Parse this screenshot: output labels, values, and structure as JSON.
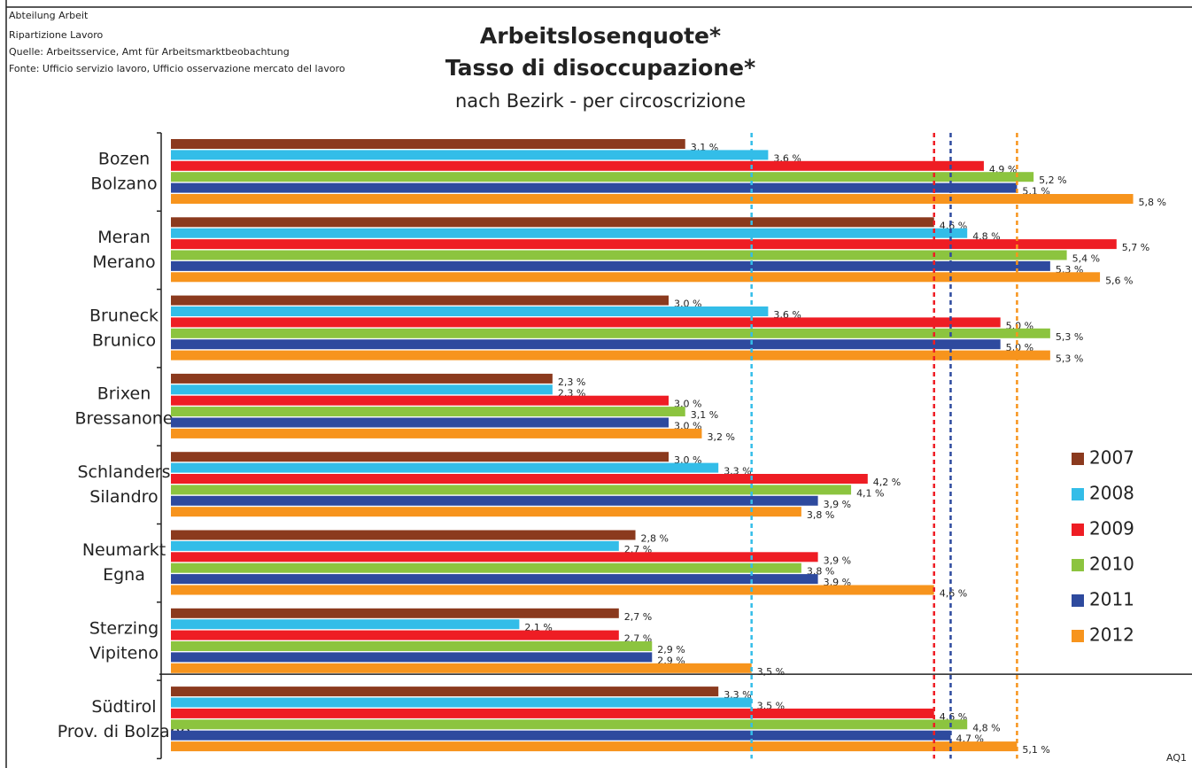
{
  "header": [
    "Abteilung Arbeit",
    "Ripartizione Lavoro",
    "Quelle: Arbeitsservice, Amt für Arbeitsmarktbeobachtung",
    "Fonte: Ufficio servizio lavoro, Ufficio osservazione mercato del lavoro"
  ],
  "footer": "AQ1",
  "chart_data": {
    "type": "hbar",
    "title": [
      "Arbeitslosenquote*",
      "Tasso di disoccupazione*"
    ],
    "subtitle": "nach Bezirk - per circoscrizione",
    "categories": [
      [
        "Bozen",
        "Bolzano"
      ],
      [
        "Meran",
        "Merano"
      ],
      [
        "Bruneck",
        "Brunico"
      ],
      [
        "Brixen",
        "Bressanone"
      ],
      [
        "Schlanders",
        "Silandro"
      ],
      [
        "Neumarkt",
        "Egna"
      ],
      [
        "Sterzing",
        "Vipiteno"
      ],
      [
        "Südtirol",
        "Prov. di Bolzano"
      ]
    ],
    "xlim": [
      0,
      6
    ],
    "series": [
      {
        "name": "2007",
        "color": "#8b3a1e",
        "reference_line": false,
        "values": [
          3.1,
          4.6,
          3.0,
          2.3,
          3.0,
          2.8,
          2.7,
          3.3
        ],
        "value_labels": [
          "3,1 %",
          "4,6 %",
          "3,0 %",
          "2,3 %",
          "3,0 %",
          "2,8 %",
          "2,7 %",
          "3,3 %"
        ]
      },
      {
        "name": "2008",
        "color": "#33bde8",
        "reference_line": true,
        "values": [
          3.6,
          4.8,
          3.6,
          2.3,
          3.3,
          2.7,
          2.1,
          3.5
        ],
        "value_labels": [
          "3,6 %",
          "4,8 %",
          "3,6 %",
          "2,3 %",
          "3,3 %",
          "2,7 %",
          "2,1 %",
          "3,5 %"
        ]
      },
      {
        "name": "2009",
        "color": "#ee1d24",
        "reference_line": true,
        "values": [
          4.9,
          5.7,
          5.0,
          3.0,
          4.2,
          3.9,
          2.7,
          4.6
        ],
        "value_labels": [
          "4,9 %",
          "5,7 %",
          "5,0 %",
          "3,0 %",
          "4,2 %",
          "3,9 %",
          "2,7 %",
          "4,6 %"
        ]
      },
      {
        "name": "2010",
        "color": "#8cc43f",
        "reference_line": false,
        "values": [
          5.2,
          5.4,
          5.3,
          3.1,
          4.1,
          3.8,
          2.9,
          4.8
        ],
        "value_labels": [
          "5,2 %",
          "5,4 %",
          "5,3 %",
          "3,1 %",
          "4,1 %",
          "3,8 %",
          "2,9 %",
          "4,8 %"
        ]
      },
      {
        "name": "2011",
        "color": "#2e4a9e",
        "reference_line": true,
        "values": [
          5.1,
          5.3,
          5.0,
          3.0,
          3.9,
          3.9,
          2.9,
          4.7
        ],
        "value_labels": [
          "5,1 %",
          "5,3 %",
          "5,0 %",
          "3,0 %",
          "3,9 %",
          "3,9 %",
          "2,9 %",
          "4,7 %"
        ]
      },
      {
        "name": "2012",
        "color": "#f7941d",
        "reference_line": true,
        "values": [
          5.8,
          5.6,
          5.3,
          3.2,
          3.8,
          4.6,
          3.5,
          5.1
        ],
        "value_labels": [
          "5,8 %",
          "5,6 %",
          "5,3 %",
          "3,2 %",
          "3,8 %",
          "4,6 %",
          "3,5 %",
          "5,1 %"
        ]
      }
    ]
  }
}
